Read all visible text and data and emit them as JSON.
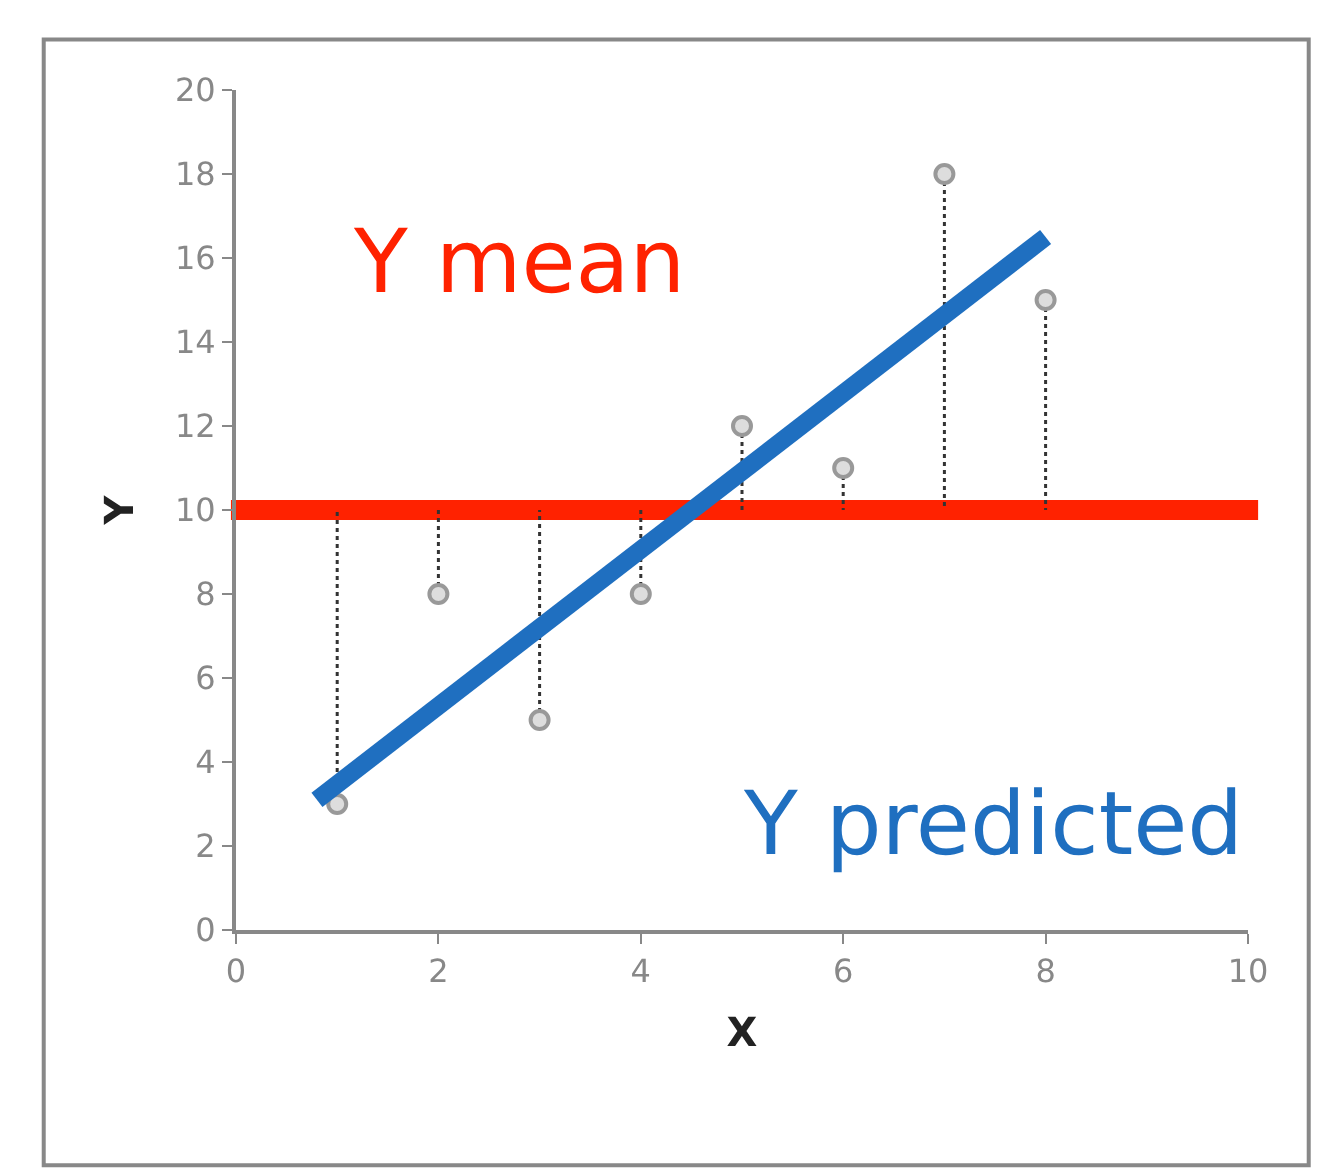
{
  "chart_data": {
    "type": "scatter",
    "xlabel": "X",
    "ylabel": "Y",
    "xlim": [
      0,
      10
    ],
    "xticks": [
      0,
      2,
      4,
      6,
      8,
      10
    ],
    "ylim": [
      0,
      20
    ],
    "yticks": [
      0,
      2,
      4,
      6,
      8,
      10,
      12,
      14,
      16,
      18,
      20
    ],
    "grid": false,
    "legend": false,
    "series": [
      {
        "type": "line",
        "line_style": "dotted",
        "marker": "none",
        "color": "#333333",
        "x": [
          1,
          1
        ],
        "values": [
          3,
          10
        ]
      },
      {
        "type": "line",
        "line_style": "dotted",
        "marker": "none",
        "color": "#333333",
        "x": [
          2,
          2
        ],
        "values": [
          8,
          10
        ]
      },
      {
        "type": "line",
        "line_style": "dotted",
        "marker": "none",
        "color": "#333333",
        "x": [
          3,
          3
        ],
        "values": [
          5,
          10
        ]
      },
      {
        "type": "line",
        "line_style": "dotted",
        "marker": "none",
        "color": "#333333",
        "x": [
          4,
          4
        ],
        "values": [
          8,
          10
        ]
      },
      {
        "type": "line",
        "line_style": "dotted",
        "marker": "none",
        "color": "#333333",
        "x": [
          5,
          5
        ],
        "values": [
          12,
          10
        ]
      },
      {
        "type": "line",
        "line_style": "dotted",
        "marker": "none",
        "color": "#333333",
        "x": [
          6,
          6
        ],
        "values": [
          11,
          10
        ]
      },
      {
        "type": "line",
        "line_style": "dotted",
        "marker": "none",
        "color": "#333333",
        "x": [
          7,
          7
        ],
        "values": [
          18,
          10
        ]
      },
      {
        "type": "line",
        "line_style": "dotted",
        "marker": "none",
        "color": "#333333",
        "x": [
          8,
          8
        ],
        "values": [
          15,
          10
        ]
      },
      {
        "marker": "circle",
        "color": "#999999",
        "x": [
          1,
          2,
          3,
          4,
          5,
          6,
          7,
          8
        ],
        "values": [
          3,
          8,
          5,
          8,
          12,
          11,
          18,
          15
        ]
      },
      {
        "type": "line",
        "line_style": "solid",
        "marker": "none",
        "name": "Y predicted",
        "color": "#1f6fc0",
        "x": [
          0.8,
          8
        ],
        "values": [
          3.1,
          16.5
        ]
      }
    ],
    "ref_lines": [
      {
        "axis": "y",
        "value": 10,
        "label": "Y mean",
        "color": "#ff2200",
        "line_style": "solid"
      }
    ]
  }
}
